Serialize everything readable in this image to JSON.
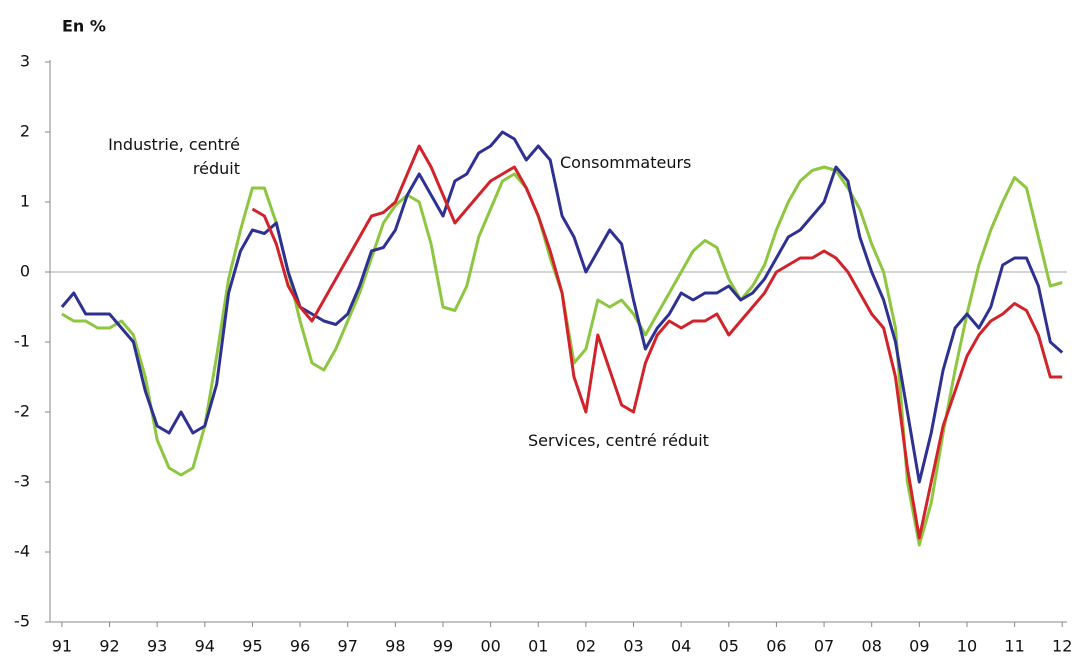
{
  "chart_data": {
    "type": "line",
    "y_label": "En %",
    "x": [
      1991,
      1991.25,
      1991.5,
      1991.75,
      1992,
      1992.25,
      1992.5,
      1992.75,
      1993,
      1993.25,
      1993.5,
      1993.75,
      1994,
      1994.25,
      1994.5,
      1994.75,
      1995,
      1995.25,
      1995.5,
      1995.75,
      1996,
      1996.25,
      1996.5,
      1996.75,
      1997,
      1997.25,
      1997.5,
      1997.75,
      1998,
      1998.25,
      1998.5,
      1998.75,
      1999,
      1999.25,
      1999.5,
      1999.75,
      2000,
      2000.25,
      2000.5,
      2000.75,
      2001,
      2001.25,
      2001.5,
      2001.75,
      2002,
      2002.25,
      2002.5,
      2002.75,
      2003,
      2003.25,
      2003.5,
      2003.75,
      2004,
      2004.25,
      2004.5,
      2004.75,
      2005,
      2005.25,
      2005.5,
      2005.75,
      2006,
      2006.25,
      2006.5,
      2006.75,
      2007,
      2007.25,
      2007.5,
      2007.75,
      2008,
      2008.25,
      2008.5,
      2008.75,
      2009,
      2009.25,
      2009.5,
      2009.75,
      2010,
      2010.25,
      2010.5,
      2010.75,
      2011,
      2011.25,
      2011.5,
      2011.75,
      2012
    ],
    "series": [
      {
        "name": "Industrie, centré réduit",
        "color": "#8dc63f",
        "values": [
          -0.6,
          -0.7,
          -0.7,
          -0.8,
          -0.8,
          -0.7,
          -0.9,
          -1.5,
          -2.4,
          -2.8,
          -2.9,
          -2.8,
          -2.2,
          -1.2,
          -0.1,
          0.6,
          1.2,
          1.2,
          0.7,
          0.0,
          -0.7,
          -1.3,
          -1.4,
          -1.1,
          -0.7,
          -0.3,
          0.2,
          0.7,
          0.95,
          1.1,
          1.0,
          0.4,
          -0.5,
          -0.55,
          -0.2,
          0.5,
          0.9,
          1.3,
          1.4,
          1.2,
          0.8,
          0.2,
          -0.3,
          -1.3,
          -1.1,
          -0.4,
          -0.5,
          -0.4,
          -0.6,
          -0.9,
          -0.6,
          -0.3,
          0.0,
          0.3,
          0.45,
          0.35,
          -0.1,
          -0.4,
          -0.2,
          0.1,
          0.6,
          1.0,
          1.3,
          1.45,
          1.5,
          1.45,
          1.2,
          0.9,
          0.4,
          0.0,
          -0.8,
          -3.0,
          -3.9,
          -3.3,
          -2.3,
          -1.4,
          -0.6,
          0.1,
          0.6,
          1.0,
          1.35,
          1.2,
          0.5,
          -0.2,
          -0.15
        ]
      },
      {
        "name": "Consommateurs",
        "color": "#2e3192",
        "values": [
          -0.5,
          -0.3,
          -0.6,
          -0.6,
          -0.6,
          -0.8,
          -1.0,
          -1.7,
          -2.2,
          -2.3,
          -2.0,
          -2.3,
          -2.2,
          -1.6,
          -0.3,
          0.3,
          0.6,
          0.55,
          0.7,
          0.0,
          -0.5,
          -0.6,
          -0.7,
          -0.75,
          -0.6,
          -0.2,
          0.3,
          0.35,
          0.6,
          1.1,
          1.4,
          1.1,
          0.8,
          1.3,
          1.4,
          1.7,
          1.8,
          2.0,
          1.9,
          1.6,
          1.8,
          1.6,
          0.8,
          0.5,
          0.0,
          0.3,
          0.6,
          0.4,
          -0.4,
          -1.1,
          -0.8,
          -0.6,
          -0.3,
          -0.4,
          -0.3,
          -0.3,
          -0.2,
          -0.4,
          -0.3,
          -0.1,
          0.2,
          0.5,
          0.6,
          0.8,
          1.0,
          1.5,
          1.3,
          0.5,
          0.0,
          -0.4,
          -1.0,
          -2.0,
          -3.0,
          -2.3,
          -1.4,
          -0.8,
          -0.6,
          -0.8,
          -0.5,
          0.1,
          0.2,
          0.2,
          -0.2,
          -1.0,
          -1.15
        ]
      },
      {
        "name": "Services, centré réduit",
        "color": "#d2232a",
        "values": [
          null,
          null,
          null,
          null,
          null,
          null,
          null,
          null,
          null,
          null,
          null,
          null,
          null,
          null,
          null,
          null,
          0.9,
          0.8,
          0.4,
          -0.2,
          -0.5,
          -0.7,
          -0.4,
          -0.1,
          0.2,
          0.5,
          0.8,
          0.85,
          1.0,
          1.4,
          1.8,
          1.5,
          1.1,
          0.7,
          0.9,
          1.1,
          1.3,
          1.4,
          1.5,
          1.2,
          0.8,
          0.3,
          -0.3,
          -1.5,
          -2.0,
          -0.9,
          -1.4,
          -1.9,
          -2.0,
          -1.3,
          -0.9,
          -0.7,
          -0.8,
          -0.7,
          -0.7,
          -0.6,
          -0.9,
          -0.7,
          -0.5,
          -0.3,
          0.0,
          0.1,
          0.2,
          0.2,
          0.3,
          0.2,
          0.0,
          -0.3,
          -0.6,
          -0.8,
          -1.5,
          -2.8,
          -3.8,
          -3.0,
          -2.2,
          -1.7,
          -1.2,
          -0.9,
          -0.7,
          -0.6,
          -0.45,
          -0.55,
          -0.9,
          -1.5,
          -1.5
        ]
      }
    ],
    "xlim": [
      1990.75,
      2012.1
    ],
    "xticks": [
      {
        "value": 1991,
        "label": "91"
      },
      {
        "value": 1992,
        "label": "92"
      },
      {
        "value": 1993,
        "label": "93"
      },
      {
        "value": 1994,
        "label": "94"
      },
      {
        "value": 1995,
        "label": "95"
      },
      {
        "value": 1996,
        "label": "96"
      },
      {
        "value": 1997,
        "label": "97"
      },
      {
        "value": 1998,
        "label": "98"
      },
      {
        "value": 1999,
        "label": "99"
      },
      {
        "value": 2000,
        "label": "00"
      },
      {
        "value": 2001,
        "label": "01"
      },
      {
        "value": 2002,
        "label": "02"
      },
      {
        "value": 2003,
        "label": "03"
      },
      {
        "value": 2004,
        "label": "04"
      },
      {
        "value": 2005,
        "label": "05"
      },
      {
        "value": 2006,
        "label": "06"
      },
      {
        "value": 2007,
        "label": "07"
      },
      {
        "value": 2008,
        "label": "08"
      },
      {
        "value": 2009,
        "label": "09"
      },
      {
        "value": 2010,
        "label": "10"
      },
      {
        "value": 2011,
        "label": "11"
      },
      {
        "value": 2012,
        "label": "12"
      }
    ],
    "ylim": [
      -5,
      3
    ],
    "yticks": [
      -5,
      -4,
      -3,
      -2,
      -1,
      0,
      1,
      2,
      3
    ]
  }
}
